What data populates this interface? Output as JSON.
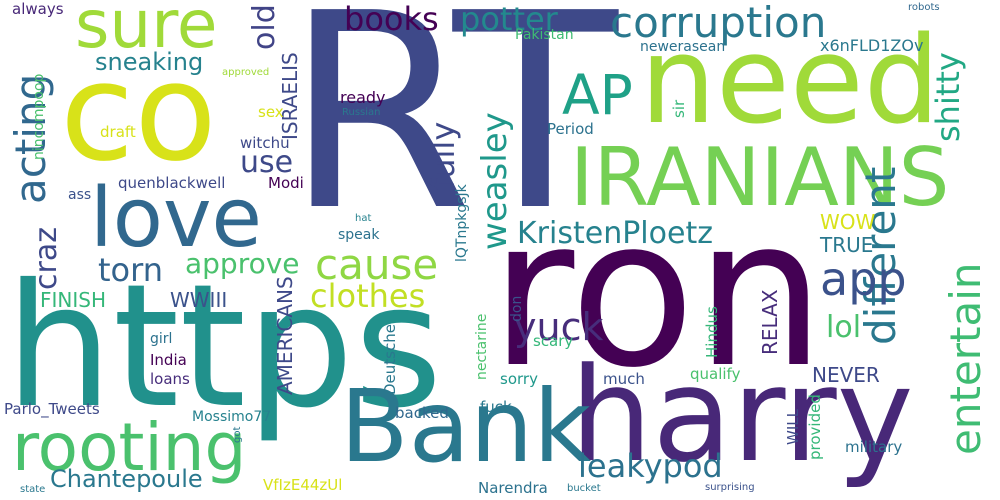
{
  "words": [
    {
      "text": "RT",
      "color": "#3e4989",
      "rotated": false
    },
    {
      "text": "ron",
      "color": "#440154",
      "rotated": false
    },
    {
      "text": "https",
      "color": "#21918c",
      "rotated": false
    },
    {
      "text": "co",
      "color": "#d8e219",
      "rotated": false
    },
    {
      "text": "need",
      "color": "#a0da39",
      "rotated": false
    },
    {
      "text": "harry",
      "color": "#482878",
      "rotated": false
    },
    {
      "text": "Bank",
      "color": "#2a788e",
      "rotated": false
    },
    {
      "text": "IRANIANS",
      "color": "#75d054",
      "rotated": false
    },
    {
      "text": "love",
      "color": "#31688e",
      "rotated": false
    },
    {
      "text": "rooting",
      "color": "#4ac16d",
      "rotated": false
    },
    {
      "text": "sure",
      "color": "#a0da39",
      "rotated": false
    },
    {
      "text": "corruption",
      "color": "#2a788e",
      "rotated": false
    },
    {
      "text": "AP",
      "color": "#1fa187",
      "rotated": false
    },
    {
      "text": "cause",
      "color": "#8fd744",
      "rotated": false
    },
    {
      "text": "acting",
      "color": "#31688e",
      "rotated": true
    },
    {
      "text": "different",
      "color": "#2a788e",
      "rotated": true
    },
    {
      "text": "entertain",
      "color": "#3fbc73",
      "rotated": true
    },
    {
      "text": "app",
      "color": "#3b528b",
      "rotated": false
    },
    {
      "text": "KristenPloetz",
      "color": "#26828e",
      "rotated": false
    },
    {
      "text": "leakypod",
      "color": "#2c728e",
      "rotated": false
    },
    {
      "text": "yuck",
      "color": "#472d7b",
      "rotated": false
    },
    {
      "text": "clothes",
      "color": "#c2df23",
      "rotated": false
    },
    {
      "text": "books",
      "color": "#440154",
      "rotated": false
    },
    {
      "text": "potter",
      "color": "#23898e",
      "rotated": false
    },
    {
      "text": "weasley",
      "color": "#1f988b",
      "rotated": true
    },
    {
      "text": "craz",
      "color": "#3e4989",
      "rotated": true
    },
    {
      "text": "torn",
      "color": "#33638d",
      "rotated": false
    },
    {
      "text": "approve",
      "color": "#4ac16d",
      "rotated": false
    },
    {
      "text": "lol",
      "color": "#4ac16d",
      "rotated": false
    },
    {
      "text": "shitty",
      "color": "#22a884",
      "rotated": true
    },
    {
      "text": "fully",
      "color": "#3e4989",
      "rotated": true
    },
    {
      "text": "use",
      "color": "#3e4989",
      "rotated": false
    },
    {
      "text": "old",
      "color": "#414487",
      "rotated": true
    },
    {
      "text": "Chantepoule",
      "color": "#2a788e",
      "rotated": false
    },
    {
      "text": "sneaking",
      "color": "#26828e",
      "rotated": false
    },
    {
      "text": "WOW",
      "color": "#d8e219",
      "rotated": false
    },
    {
      "text": "TRUE",
      "color": "#2a788e",
      "rotated": false
    },
    {
      "text": "FINISH",
      "color": "#35b779",
      "rotated": false
    },
    {
      "text": "WWIII",
      "color": "#3b528b",
      "rotated": false
    },
    {
      "text": "RELAX",
      "color": "#472d7b",
      "rotated": true
    },
    {
      "text": "AMERICANS",
      "color": "#3e4989",
      "rotated": true
    },
    {
      "text": "ISRAELIS",
      "color": "#3e4989",
      "rotated": true
    },
    {
      "text": "NEVER",
      "color": "#3e4989",
      "rotated": false
    },
    {
      "text": "Pakistan",
      "color": "#3fbc73",
      "rotated": false
    },
    {
      "text": "newerasean",
      "color": "#2c728e",
      "rotated": false
    },
    {
      "text": "x6nFLD1ZOv",
      "color": "#2a788e",
      "rotated": false
    },
    {
      "text": "ready",
      "color": "#440154",
      "rotated": false
    },
    {
      "text": "quenblackwell",
      "color": "#3e4989",
      "rotated": false
    },
    {
      "text": "Modi",
      "color": "#440154",
      "rotated": false
    },
    {
      "text": "witchu",
      "color": "#3e4989",
      "rotated": false
    },
    {
      "text": "nincompoop",
      "color": "#4ac16d",
      "rotated": true
    },
    {
      "text": "draft",
      "color": "#d8e219",
      "rotated": false
    },
    {
      "text": "sex",
      "color": "#d8e219",
      "rotated": false
    },
    {
      "text": "Period",
      "color": "#2c728e",
      "rotated": false
    },
    {
      "text": "sir",
      "color": "#35b779",
      "rotated": true
    },
    {
      "text": "always",
      "color": "#482878",
      "rotated": false
    },
    {
      "text": "robots",
      "color": "#31688e",
      "rotated": false
    },
    {
      "text": "approved",
      "color": "#a0da39",
      "rotated": false
    },
    {
      "text": "Russian",
      "color": "#2a788e",
      "rotated": false
    },
    {
      "text": "ass",
      "color": "#3b528b",
      "rotated": false
    },
    {
      "text": "speak",
      "color": "#2c728e",
      "rotated": false
    },
    {
      "text": "hat",
      "color": "#26828e",
      "rotated": false
    },
    {
      "text": "lQTnpkgsJk",
      "color": "#2a788e",
      "rotated": true
    },
    {
      "text": "girl",
      "color": "#2c728e",
      "rotated": false
    },
    {
      "text": "India",
      "color": "#440154",
      "rotated": false
    },
    {
      "text": "loans",
      "color": "#472d7b",
      "rotated": false
    },
    {
      "text": "Deutsche",
      "color": "#2a788e",
      "rotated": true
    },
    {
      "text": "nectarine",
      "color": "#4ac16d",
      "rotated": true
    },
    {
      "text": "don",
      "color": "#3b528b",
      "rotated": true
    },
    {
      "text": "scary",
      "color": "#35b779",
      "rotated": false
    },
    {
      "text": "Hindus",
      "color": "#35b779",
      "rotated": true
    },
    {
      "text": "qualify",
      "color": "#4ac16d",
      "rotated": false
    },
    {
      "text": "much",
      "color": "#3b528b",
      "rotated": false
    },
    {
      "text": "sorry",
      "color": "#1f988b",
      "rotated": false
    },
    {
      "text": "Parlo_Tweets",
      "color": "#3e4989",
      "rotated": false
    },
    {
      "text": "Mossimo77",
      "color": "#26828e",
      "rotated": false
    },
    {
      "text": "backed",
      "color": "#31688e",
      "rotated": false
    },
    {
      "text": "fuck",
      "color": "#2a788e",
      "rotated": false
    },
    {
      "text": "WILL",
      "color": "#3e4989",
      "rotated": true
    },
    {
      "text": "provided",
      "color": "#35b779",
      "rotated": true
    },
    {
      "text": "military",
      "color": "#2c728e",
      "rotated": false
    },
    {
      "text": "got",
      "color": "#2a788e",
      "rotated": true
    },
    {
      "text": "VfIzE44zUl",
      "color": "#d8e219",
      "rotated": false
    },
    {
      "text": "Narendra",
      "color": "#2c728e",
      "rotated": false
    },
    {
      "text": "bucket",
      "color": "#2a788e",
      "rotated": false
    },
    {
      "text": "surprising",
      "color": "#3b528b",
      "rotated": false
    },
    {
      "text": "state",
      "color": "#2a788e",
      "rotated": false
    }
  ]
}
